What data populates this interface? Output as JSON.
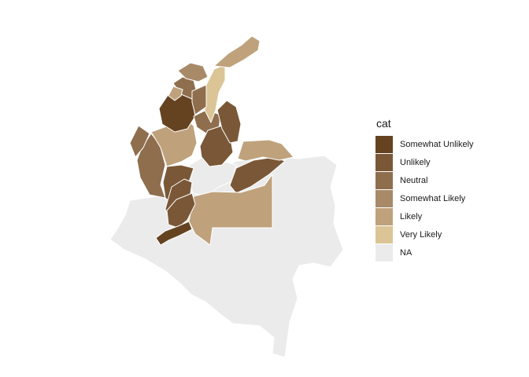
{
  "legend": {
    "title": "cat",
    "items": [
      {
        "label": "Somewhat Unlikely",
        "color": "#654321"
      },
      {
        "label": "Unlikely",
        "color": "#7a5837"
      },
      {
        "label": "Neutral",
        "color": "#8f6e4e"
      },
      {
        "label": "Somewhat Likely",
        "color": "#a88a68"
      },
      {
        "label": "Likely",
        "color": "#bfa27c"
      },
      {
        "label": "Very Likely",
        "color": "#dbc596"
      },
      {
        "label": "NA",
        "color": "#ebebeb"
      }
    ]
  }
}
